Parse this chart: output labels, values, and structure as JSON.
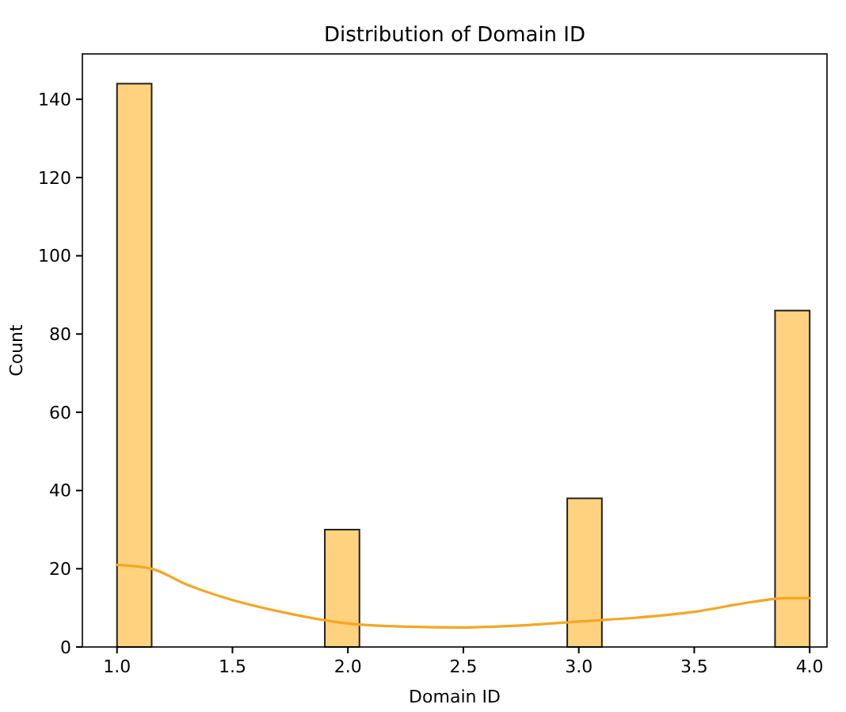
{
  "chart_data": {
    "type": "histogram",
    "title": "Distribution of Domain ID",
    "xlabel": "Domain ID",
    "ylabel": "Count",
    "bins": [
      1.0,
      1.15,
      1.3,
      1.45,
      1.6,
      1.75,
      1.9,
      2.05,
      2.2,
      2.35,
      2.5,
      2.65,
      2.8,
      2.95,
      3.1,
      3.25,
      3.4,
      3.55,
      3.7,
      3.85,
      4.0
    ],
    "values": [
      144,
      0,
      0,
      0,
      0,
      0,
      30,
      0,
      0,
      0,
      0,
      0,
      0,
      38,
      0,
      0,
      0,
      0,
      0,
      86
    ],
    "color": "#ffd27f",
    "series": [
      {
        "type": "line",
        "color": "#f5a623",
        "x": [
          1.0,
          1.15,
          1.3,
          1.5,
          1.75,
          2.0,
          2.25,
          2.5,
          2.75,
          3.0,
          3.25,
          3.5,
          3.75,
          3.9,
          4.0
        ],
        "values": [
          21,
          20,
          16,
          12,
          8.5,
          6,
          5.2,
          5,
          5.5,
          6.5,
          7.5,
          9,
          11.5,
          12.5,
          12.5
        ]
      }
    ],
    "xlim": [
      0.85,
      4.075
    ],
    "ylim": [
      0,
      151.6
    ],
    "xticks": [
      {
        "value": 1,
        "label": "1.0"
      },
      1.5,
      {
        "value": 2,
        "label": "2.0"
      },
      2.5,
      {
        "value": 3,
        "label": "3.0"
      },
      3.5,
      {
        "value": 4,
        "label": "4.0"
      }
    ],
    "yticks": [
      0,
      20,
      40,
      60,
      80,
      100,
      120,
      140
    ],
    "grid": false
  }
}
